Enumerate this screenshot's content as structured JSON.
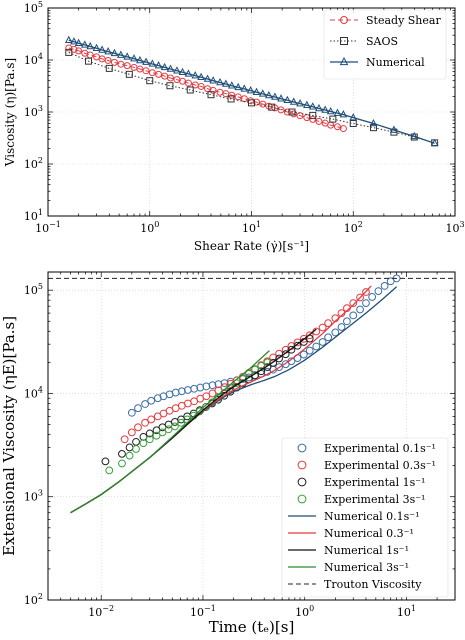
{
  "chart_data": [
    {
      "type": "line",
      "xlabel": "Shear Rate (γ̇)[s⁻¹]",
      "ylabel": "Viscosity (η)[Pa.s]",
      "x_scale": "log",
      "y_scale": "log",
      "xlim": [
        0.1,
        1000
      ],
      "ylim": [
        10,
        100000
      ],
      "x_ticks": [
        {
          "value": 0.1,
          "base": "10",
          "exp": "−1"
        },
        {
          "value": 1,
          "base": "10",
          "exp": "0"
        },
        {
          "value": 10,
          "base": "10",
          "exp": "1"
        },
        {
          "value": 100,
          "base": "10",
          "exp": "2"
        },
        {
          "value": 1000,
          "base": "10",
          "exp": "3"
        }
      ],
      "y_ticks": [
        {
          "value": 10,
          "base": "10",
          "exp": "1"
        },
        {
          "value": 100,
          "base": "10",
          "exp": "2"
        },
        {
          "value": 1000,
          "base": "10",
          "exp": "3"
        },
        {
          "value": 10000,
          "base": "10",
          "exp": "4"
        },
        {
          "value": 100000,
          "base": "10",
          "exp": "5"
        }
      ],
      "grid": true,
      "legend_position": "top-right",
      "series": [
        {
          "name": "Steady Shear",
          "color": "#e8393f",
          "line": "dashed",
          "marker": "circle",
          "x": [
            0.16,
            0.18,
            0.2,
            0.23,
            0.26,
            0.3,
            0.34,
            0.39,
            0.45,
            0.52,
            0.6,
            0.7,
            0.8,
            0.92,
            1.06,
            1.22,
            1.4,
            1.6,
            1.85,
            2.1,
            2.4,
            2.8,
            3.2,
            3.7,
            4.2,
            4.9,
            5.6,
            6.4,
            7.4,
            8.5,
            9.8,
            11.2,
            12.9,
            14.8,
            17,
            19.5,
            22.5,
            26,
            30,
            35,
            40,
            46,
            53,
            60,
            70,
            80
          ],
          "y": [
            17000,
            16000,
            15000,
            13500,
            12500,
            11500,
            10500,
            9800,
            9000,
            8300,
            7800,
            7200,
            6700,
            6200,
            5700,
            5300,
            4900,
            4500,
            4200,
            3900,
            3600,
            3300,
            3100,
            2800,
            2600,
            2400,
            2250,
            2100,
            1950,
            1800,
            1650,
            1550,
            1420,
            1300,
            1200,
            1100,
            1000,
            920,
            850,
            780,
            720,
            660,
            610,
            560,
            520,
            480
          ]
        },
        {
          "name": "SAOS",
          "color": "#333333",
          "line": "dotted",
          "marker": "square",
          "x": [
            0.16,
            0.25,
            0.4,
            0.63,
            1.0,
            1.58,
            2.5,
            4.0,
            6.3,
            10,
            15.8,
            25,
            40,
            63,
            100,
            158,
            251,
            398,
            631
          ],
          "y": [
            14000,
            9500,
            6900,
            5300,
            4000,
            3200,
            2650,
            2150,
            1780,
            1500,
            1240,
            1000,
            860,
            730,
            600,
            500,
            410,
            330,
            255
          ]
        },
        {
          "name": "Numerical",
          "color": "#1f4e79",
          "line": "solid",
          "marker": "triangle",
          "x": [
            0.16,
            0.18,
            0.2,
            0.23,
            0.26,
            0.3,
            0.34,
            0.39,
            0.45,
            0.52,
            0.6,
            0.7,
            0.8,
            0.92,
            1.06,
            1.22,
            1.4,
            1.6,
            1.85,
            2.1,
            2.4,
            2.8,
            3.2,
            3.7,
            4.2,
            4.9,
            5.6,
            6.4,
            7.4,
            8.5,
            9.8,
            11.2,
            12.9,
            14.8,
            17,
            19.5,
            22.5,
            26,
            30,
            35,
            40,
            46,
            53,
            60,
            70,
            80,
            100,
            158,
            251,
            398,
            631
          ],
          "y": [
            24000,
            22500,
            21000,
            19500,
            18200,
            16800,
            15600,
            14500,
            13400,
            12400,
            11500,
            10600,
            9800,
            9100,
            8400,
            7800,
            7200,
            6700,
            6200,
            5800,
            5400,
            5000,
            4650,
            4300,
            4000,
            3700,
            3450,
            3200,
            2980,
            2780,
            2580,
            2400,
            2230,
            2080,
            1940,
            1800,
            1680,
            1560,
            1450,
            1350,
            1260,
            1170,
            1090,
            1020,
            950,
            890,
            780,
            600,
            450,
            340,
            250
          ]
        }
      ]
    },
    {
      "type": "line",
      "xlabel": "Time (tₑ)[s]",
      "ylabel": "Extensional Viscosity (ηE)[Pa.s]",
      "x_scale": "log",
      "y_scale": "log",
      "xlim": [
        0.003,
        30
      ],
      "ylim": [
        100,
        150000
      ],
      "x_ticks": [
        {
          "value": 0.01,
          "base": "10",
          "exp": "−2"
        },
        {
          "value": 0.1,
          "base": "10",
          "exp": "−1"
        },
        {
          "value": 1,
          "base": "10",
          "exp": "0"
        },
        {
          "value": 10,
          "base": "10",
          "exp": "1"
        }
      ],
      "y_ticks": [
        {
          "value": 100,
          "base": "10",
          "exp": "2"
        },
        {
          "value": 1000,
          "base": "10",
          "exp": "3"
        },
        {
          "value": 10000,
          "base": "10",
          "exp": "4"
        },
        {
          "value": 100000,
          "base": "10",
          "exp": "5"
        }
      ],
      "grid": true,
      "legend_position": "bottom-right",
      "series": [
        {
          "name": "Experimental 0.1s⁻¹",
          "color": "#3a6ea5",
          "line": "none",
          "marker": "circle",
          "x": [
            0.02,
            0.023,
            0.027,
            0.031,
            0.036,
            0.041,
            0.047,
            0.054,
            0.062,
            0.071,
            0.082,
            0.094,
            0.108,
            0.124,
            0.142,
            0.163,
            0.187,
            0.215,
            0.247,
            0.283,
            0.325,
            0.373,
            0.428,
            0.49,
            0.56,
            0.65,
            0.74,
            0.85,
            0.98,
            1.12,
            1.3,
            1.5,
            1.7,
            2.0,
            2.3,
            2.6,
            3.0,
            3.5,
            4.0,
            4.6,
            5.3,
            6.1,
            7.0,
            8.0
          ],
          "y": [
            6500,
            7200,
            7900,
            8500,
            9000,
            9400,
            9800,
            10200,
            10500,
            10800,
            11100,
            11400,
            11700,
            12000,
            12300,
            12600,
            13000,
            13400,
            13800,
            14300,
            14800,
            15500,
            16200,
            17000,
            18000,
            19200,
            20500,
            22000,
            23800,
            26000,
            28500,
            31500,
            35000,
            39000,
            44000,
            50000,
            57000,
            65000,
            75000,
            86000,
            98000,
            110000,
            122000,
            130000
          ]
        },
        {
          "name": "Experimental 0.3s⁻¹",
          "color": "#e8393f",
          "line": "none",
          "marker": "circle",
          "x": [
            0.017,
            0.02,
            0.023,
            0.027,
            0.031,
            0.036,
            0.041,
            0.047,
            0.054,
            0.062,
            0.071,
            0.082,
            0.094,
            0.108,
            0.124,
            0.142,
            0.163,
            0.187,
            0.215,
            0.247,
            0.283,
            0.325,
            0.373,
            0.428,
            0.49,
            0.56,
            0.65,
            0.74,
            0.85,
            0.98,
            1.12,
            1.3,
            1.5,
            1.7,
            2.0,
            2.3,
            2.6,
            3.0,
            3.5,
            4.0
          ],
          "y": [
            3600,
            4200,
            4700,
            5200,
            5600,
            6000,
            6400,
            6800,
            7200,
            7600,
            8000,
            8400,
            8900,
            9400,
            10000,
            10700,
            11500,
            12400,
            13400,
            14500,
            15800,
            17200,
            18800,
            20500,
            22300,
            24300,
            26500,
            28800,
            31200,
            33800,
            36600,
            39800,
            43500,
            48000,
            53500,
            60000,
            67000,
            75000,
            85000,
            96000
          ]
        },
        {
          "name": "Experimental 1s⁻¹",
          "color": "#222222",
          "line": "none",
          "marker": "circle",
          "x": [
            0.011,
            0.016,
            0.019,
            0.022,
            0.026,
            0.03,
            0.035,
            0.04,
            0.046,
            0.053,
            0.061,
            0.07,
            0.081,
            0.093,
            0.107,
            0.123,
            0.141,
            0.162,
            0.186,
            0.214,
            0.246,
            0.283,
            0.325,
            0.374,
            0.43,
            0.49,
            0.56,
            0.65,
            0.74,
            0.85,
            0.98,
            1.12
          ],
          "y": [
            2200,
            2600,
            3000,
            3400,
            3800,
            4100,
            4400,
            4700,
            5000,
            5300,
            5600,
            6000,
            6400,
            6900,
            7400,
            8000,
            8700,
            9500,
            10400,
            11400,
            12500,
            13700,
            15000,
            16400,
            18000,
            19800,
            21800,
            24000,
            26500,
            29000,
            31500,
            34000
          ]
        },
        {
          "name": "Experimental 3s⁻¹",
          "color": "#3aa13a",
          "line": "none",
          "marker": "circle",
          "x": [
            0.012,
            0.016,
            0.019,
            0.022,
            0.026,
            0.03,
            0.035,
            0.04,
            0.046,
            0.053,
            0.061,
            0.07,
            0.081,
            0.093,
            0.107,
            0.123,
            0.141,
            0.162,
            0.186,
            0.214,
            0.246,
            0.283,
            0.325,
            0.374,
            0.43
          ],
          "y": [
            1800,
            2100,
            2500,
            2900,
            3300,
            3600,
            3900,
            4200,
            4500,
            4800,
            5200,
            5600,
            6100,
            6700,
            7400,
            8200,
            9100,
            10100,
            11300,
            12600,
            14000,
            15500,
            17000,
            18500,
            20000
          ]
        },
        {
          "name": "Numerical 0.1s⁻¹",
          "color": "#1f4e79",
          "line": "solid",
          "marker": "none",
          "x": [
            0.005,
            0.007,
            0.01,
            0.015,
            0.02,
            0.03,
            0.05,
            0.07,
            0.1,
            0.15,
            0.2,
            0.3,
            0.4,
            0.5,
            0.7,
            1,
            1.5,
            2,
            3,
            4,
            5,
            6,
            7,
            8
          ],
          "y": [
            700,
            850,
            1050,
            1400,
            1750,
            2400,
            3700,
            5000,
            6700,
            8900,
            10400,
            12200,
            13400,
            14500,
            17000,
            21000,
            28000,
            35000,
            48000,
            60000,
            72000,
            84000,
            96000,
            108000
          ]
        },
        {
          "name": "Numerical 0.3⁻¹",
          "color": "#e8393f",
          "line": "solid",
          "marker": "none",
          "x": [
            0.005,
            0.007,
            0.01,
            0.015,
            0.02,
            0.03,
            0.05,
            0.07,
            0.1,
            0.15,
            0.2,
            0.3,
            0.4,
            0.5,
            0.7,
            1,
            1.5,
            2,
            3,
            4.5
          ],
          "y": [
            700,
            850,
            1050,
            1400,
            1750,
            2400,
            3700,
            5000,
            6800,
            9100,
            10800,
            13000,
            14800,
            16600,
            20500,
            27000,
            38000,
            50000,
            72000,
            110000
          ]
        },
        {
          "name": "Numerical 1s⁻¹",
          "color": "#111111",
          "line": "solid",
          "marker": "none",
          "x": [
            0.005,
            0.007,
            0.01,
            0.015,
            0.02,
            0.03,
            0.05,
            0.07,
            0.1,
            0.15,
            0.2,
            0.3,
            0.4,
            0.5,
            0.7,
            1.0,
            1.3
          ],
          "y": [
            700,
            850,
            1050,
            1400,
            1750,
            2400,
            3700,
            5000,
            6900,
            9500,
            11600,
            14800,
            17600,
            20400,
            26000,
            34000,
            42000
          ]
        },
        {
          "name": "Numerical 3s⁻¹",
          "color": "#2e8b2e",
          "line": "solid",
          "marker": "none",
          "x": [
            0.005,
            0.007,
            0.01,
            0.015,
            0.02,
            0.03,
            0.05,
            0.07,
            0.1,
            0.15,
            0.2,
            0.3,
            0.45
          ],
          "y": [
            700,
            850,
            1050,
            1400,
            1750,
            2400,
            3800,
            5200,
            7300,
            10200,
            13000,
            18000,
            26000
          ]
        },
        {
          "name": "Trouton Viscosity",
          "color": "#222222",
          "line": "dashed",
          "marker": "none",
          "x": [
            0.003,
            30
          ],
          "y": [
            130000,
            130000
          ]
        }
      ]
    }
  ]
}
